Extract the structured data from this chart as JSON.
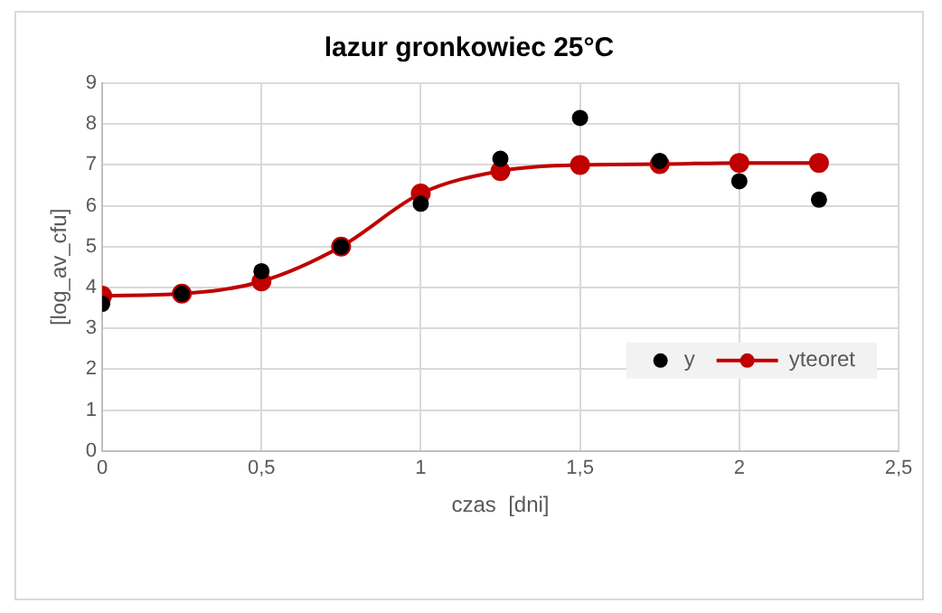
{
  "chart_data": {
    "type": "scatter",
    "title": "lazur gronkowiec 25°C",
    "xlabel": "czas  [dni]",
    "ylabel": "[log_av_cfu]",
    "series": [
      {
        "name": "y",
        "color": "#000000",
        "x": [
          0,
          0.25,
          0.5,
          0.75,
          1,
          1.25,
          1.5,
          1.75,
          2,
          2.25
        ],
        "values": [
          3.6,
          3.85,
          4.4,
          5.0,
          6.05,
          7.15,
          8.15,
          7.1,
          6.6,
          6.15
        ]
      },
      {
        "name": "yteoret",
        "type": "line",
        "color": "#c00000",
        "x": [
          0,
          0.25,
          0.5,
          0.75,
          1,
          1.25,
          1.5,
          1.75,
          2,
          2.25
        ],
        "values": [
          3.8,
          3.85,
          4.15,
          5.0,
          6.3,
          6.85,
          7.0,
          7.02,
          7.05,
          7.05
        ]
      }
    ],
    "xlim": [
      0,
      2.5
    ],
    "xticks": [
      0,
      {
        "value": 0.5,
        "label": "0,5"
      },
      1,
      {
        "value": 1.5,
        "label": "1,5"
      },
      2,
      {
        "value": 2.5,
        "label": "2,5"
      }
    ],
    "ylim": [
      0,
      9
    ],
    "yticks": [
      0,
      1,
      2,
      3,
      4,
      5,
      6,
      7,
      8,
      9
    ],
    "grid": true,
    "legend": "bottom right",
    "marker": "circle"
  }
}
